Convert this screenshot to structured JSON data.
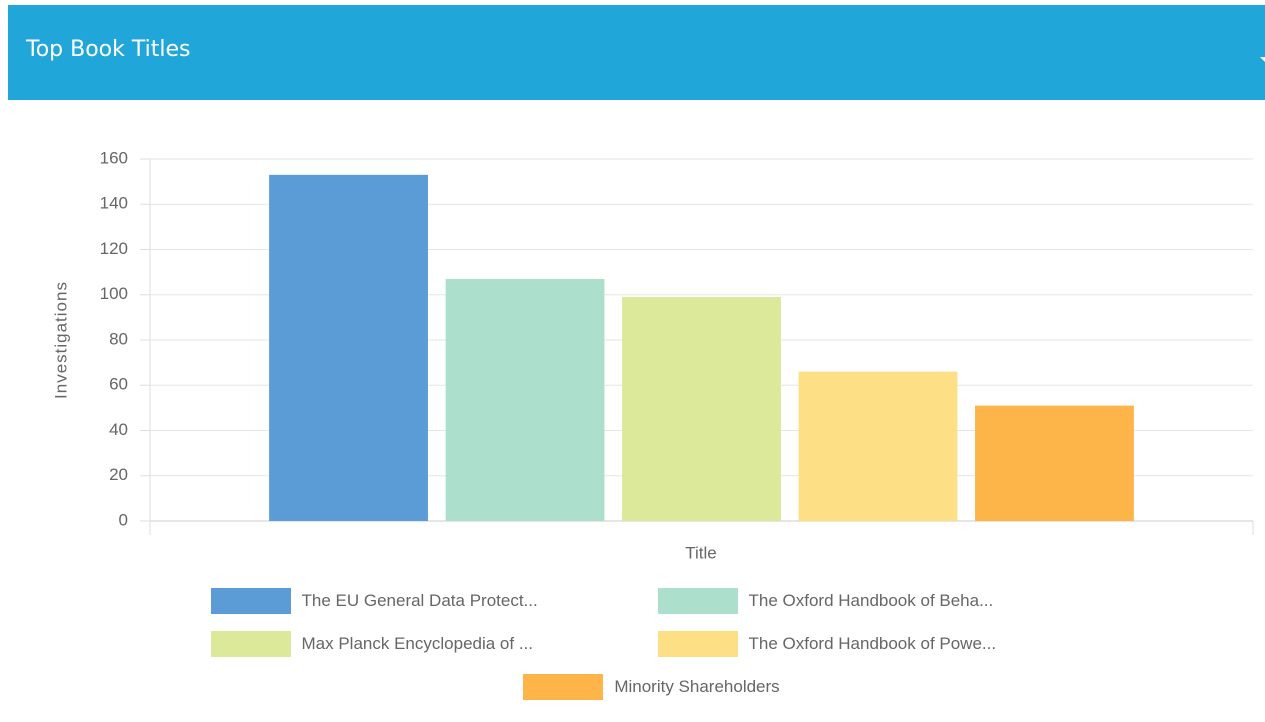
{
  "header": {
    "title": "Top Book Titles"
  },
  "chart_data": {
    "type": "bar",
    "categories": [
      null
    ],
    "series": [
      {
        "name": "The EU General Data Protect...",
        "color": "#5b9bd6",
        "values": [
          153
        ]
      },
      {
        "name": "The Oxford Handbook of Beha...",
        "color": "#addfcd",
        "values": [
          107
        ]
      },
      {
        "name": "Max Planck Encyclopedia of ...",
        "color": "#dce99a",
        "values": [
          99
        ]
      },
      {
        "name": "The Oxford Handbook of Powe...",
        "color": "#fde085",
        "values": [
          66
        ]
      },
      {
        "name": "Minority Shareholders",
        "color": "#fdb54a",
        "values": [
          51
        ]
      }
    ],
    "x_label": "Title",
    "y_label": "Investigations",
    "ylim": [
      0,
      160
    ],
    "yticks": [
      0,
      20,
      40,
      60,
      80,
      100,
      120,
      140,
      160
    ],
    "grid": true,
    "legend": "bottom"
  }
}
